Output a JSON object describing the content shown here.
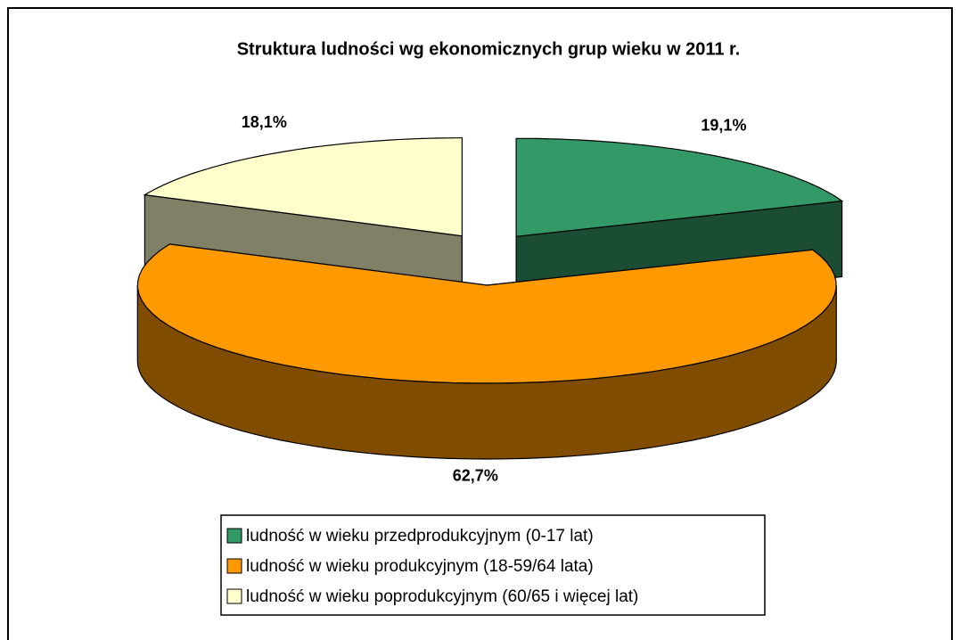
{
  "chart_data": {
    "type": "pie3d",
    "title": "Struktura ludności wg ekonomicznych grup wieku w 2011 r.",
    "categories": [
      "ludność w wieku przedprodukcyjnym (0-17 lat)",
      "ludność w wieku produkcyjnym (18-59/64 lata)",
      "ludność w wieku poprodukcyjnym (60/65 i więcej lat)"
    ],
    "values": [
      19.1,
      62.7,
      18.1
    ],
    "value_labels": [
      "19,1%",
      "62,7%",
      "18,1%"
    ],
    "colors": [
      "#339966",
      "#ff9900",
      "#ffffcc"
    ],
    "legend": "bottom"
  }
}
